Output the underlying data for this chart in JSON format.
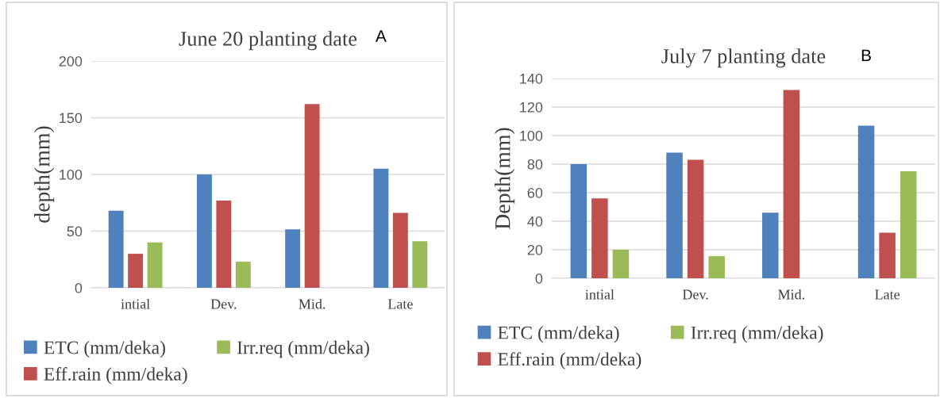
{
  "chart_data": [
    {
      "type": "bar",
      "title": "June 20 planting date",
      "ylabel": "depth(mm)",
      "annotations": [
        "A"
      ],
      "categories": [
        "intial",
        "Dev.",
        "Mid.",
        "Late"
      ],
      "series": [
        {
          "name": "ETC (mm/deka)",
          "color": "#4f81bd",
          "values": [
            68,
            100,
            51.5,
            105
          ]
        },
        {
          "name": "Eff.rain (mm/deka)",
          "color": "#c0504d",
          "values": [
            30,
            77,
            162,
            66
          ]
        },
        {
          "name": "Irr.req (mm/deka)",
          "color": "#9bbb59",
          "values": [
            40,
            23,
            0,
            41
          ]
        }
      ],
      "ylim": [
        0,
        200
      ],
      "yticks": [
        0,
        50,
        100,
        150,
        200
      ],
      "grid": "y",
      "legend": "bottom"
    },
    {
      "type": "bar",
      "title": "July 7 planting date",
      "ylabel": "Depth(mm)",
      "annotations": [
        "B"
      ],
      "categories": [
        "intial",
        "Dev.",
        "Mid.",
        "Late"
      ],
      "series": [
        {
          "name": "ETC (mm/deka)",
          "color": "#4f81bd",
          "values": [
            80,
            88,
            46,
            107
          ]
        },
        {
          "name": "Eff.rain (mm/deka)",
          "color": "#c0504d",
          "values": [
            56,
            83,
            132,
            32
          ]
        },
        {
          "name": "Irr.req (mm/deka)",
          "color": "#9bbb59",
          "values": [
            20,
            15.5,
            0,
            75
          ]
        }
      ],
      "ylim": [
        0,
        140
      ],
      "yticks": [
        0,
        20,
        40,
        60,
        80,
        100,
        120,
        140
      ],
      "grid": "y",
      "legend": "bottom"
    }
  ]
}
